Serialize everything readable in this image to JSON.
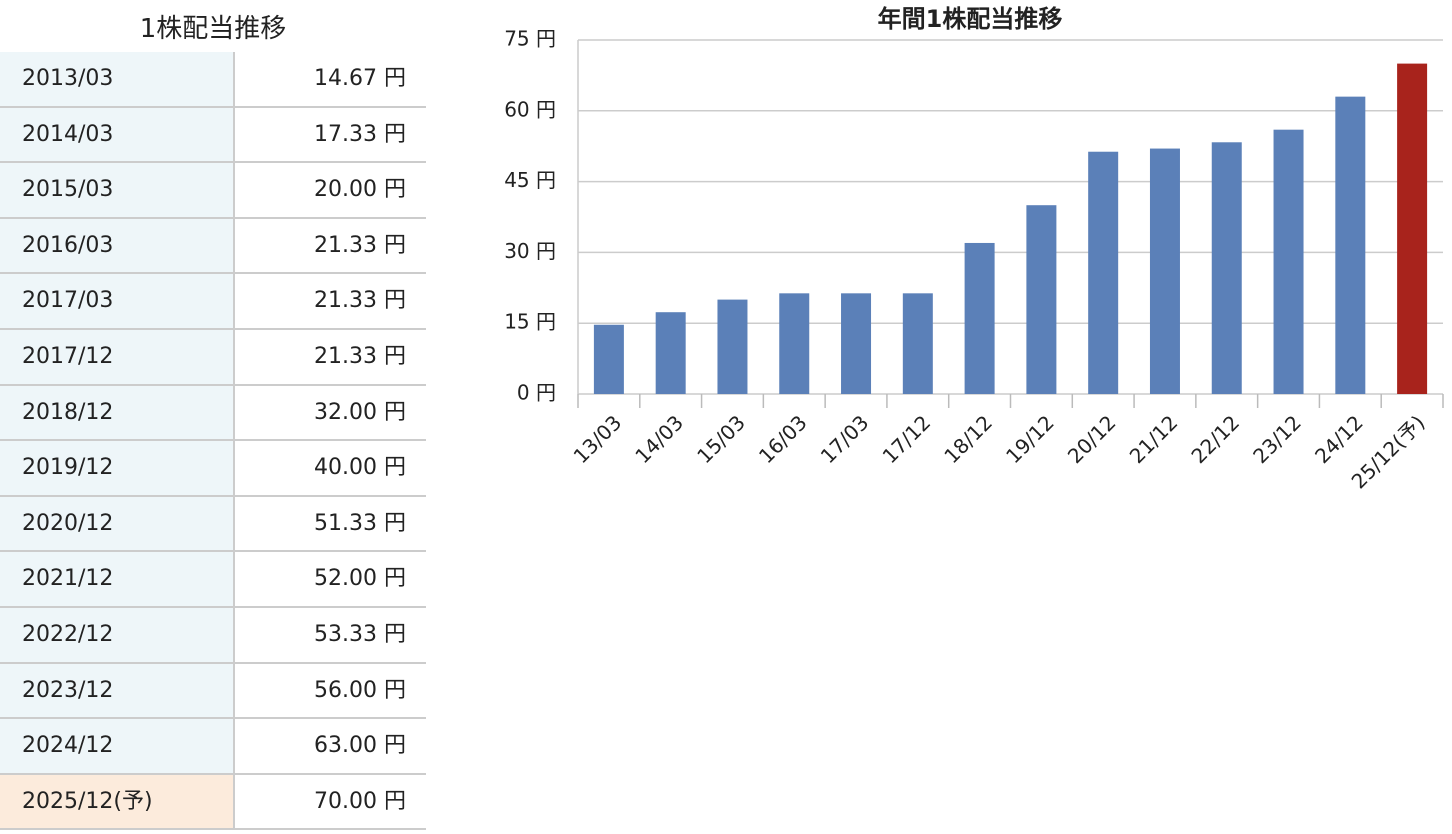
{
  "table": {
    "title": "1株配当推移",
    "rows": [
      [
        "2013/03",
        "14.67 円"
      ],
      [
        "2014/03",
        "17.33 円"
      ],
      [
        "2015/03",
        "20.00 円"
      ],
      [
        "2016/03",
        "21.33 円"
      ],
      [
        "2017/03",
        "21.33 円"
      ],
      [
        "2017/12",
        "21.33 円"
      ],
      [
        "2018/12",
        "32.00 円"
      ],
      [
        "2019/12",
        "40.00 円"
      ],
      [
        "2020/12",
        "51.33 円"
      ],
      [
        "2021/12",
        "52.00 円"
      ],
      [
        "2022/12",
        "53.33 円"
      ],
      [
        "2023/12",
        "56.00 円"
      ],
      [
        "2024/12",
        "63.00 円"
      ],
      [
        "2025/12(予)",
        "70.00 円"
      ]
    ]
  },
  "chart_data": {
    "type": "bar",
    "title": "年間1株配当推移",
    "categories": [
      "13/03",
      "14/03",
      "15/03",
      "16/03",
      "17/03",
      "17/12",
      "18/12",
      "19/12",
      "20/12",
      "21/12",
      "22/12",
      "23/12",
      "24/12",
      "25/12(予)"
    ],
    "values": [
      14.67,
      17.33,
      20,
      21.33,
      21.33,
      21.33,
      32,
      40,
      51.33,
      52,
      53.33,
      56,
      63,
      70
    ],
    "colors": [
      "#5b80b8",
      "#5b80b8",
      "#5b80b8",
      "#5b80b8",
      "#5b80b8",
      "#5b80b8",
      "#5b80b8",
      "#5b80b8",
      "#5b80b8",
      "#5b80b8",
      "#5b80b8",
      "#5b80b8",
      "#5b80b8",
      "#a8231c"
    ],
    "ylim": [
      0,
      75
    ],
    "yticks": [
      {
        "value": 0,
        "label": "0 円"
      },
      {
        "value": 15,
        "label": "15 円"
      },
      {
        "value": 30,
        "label": "30 円"
      },
      {
        "value": 45,
        "label": "45 円"
      },
      {
        "value": 60,
        "label": "60 円"
      },
      {
        "value": 75,
        "label": "75 円"
      }
    ],
    "grid": true
  }
}
